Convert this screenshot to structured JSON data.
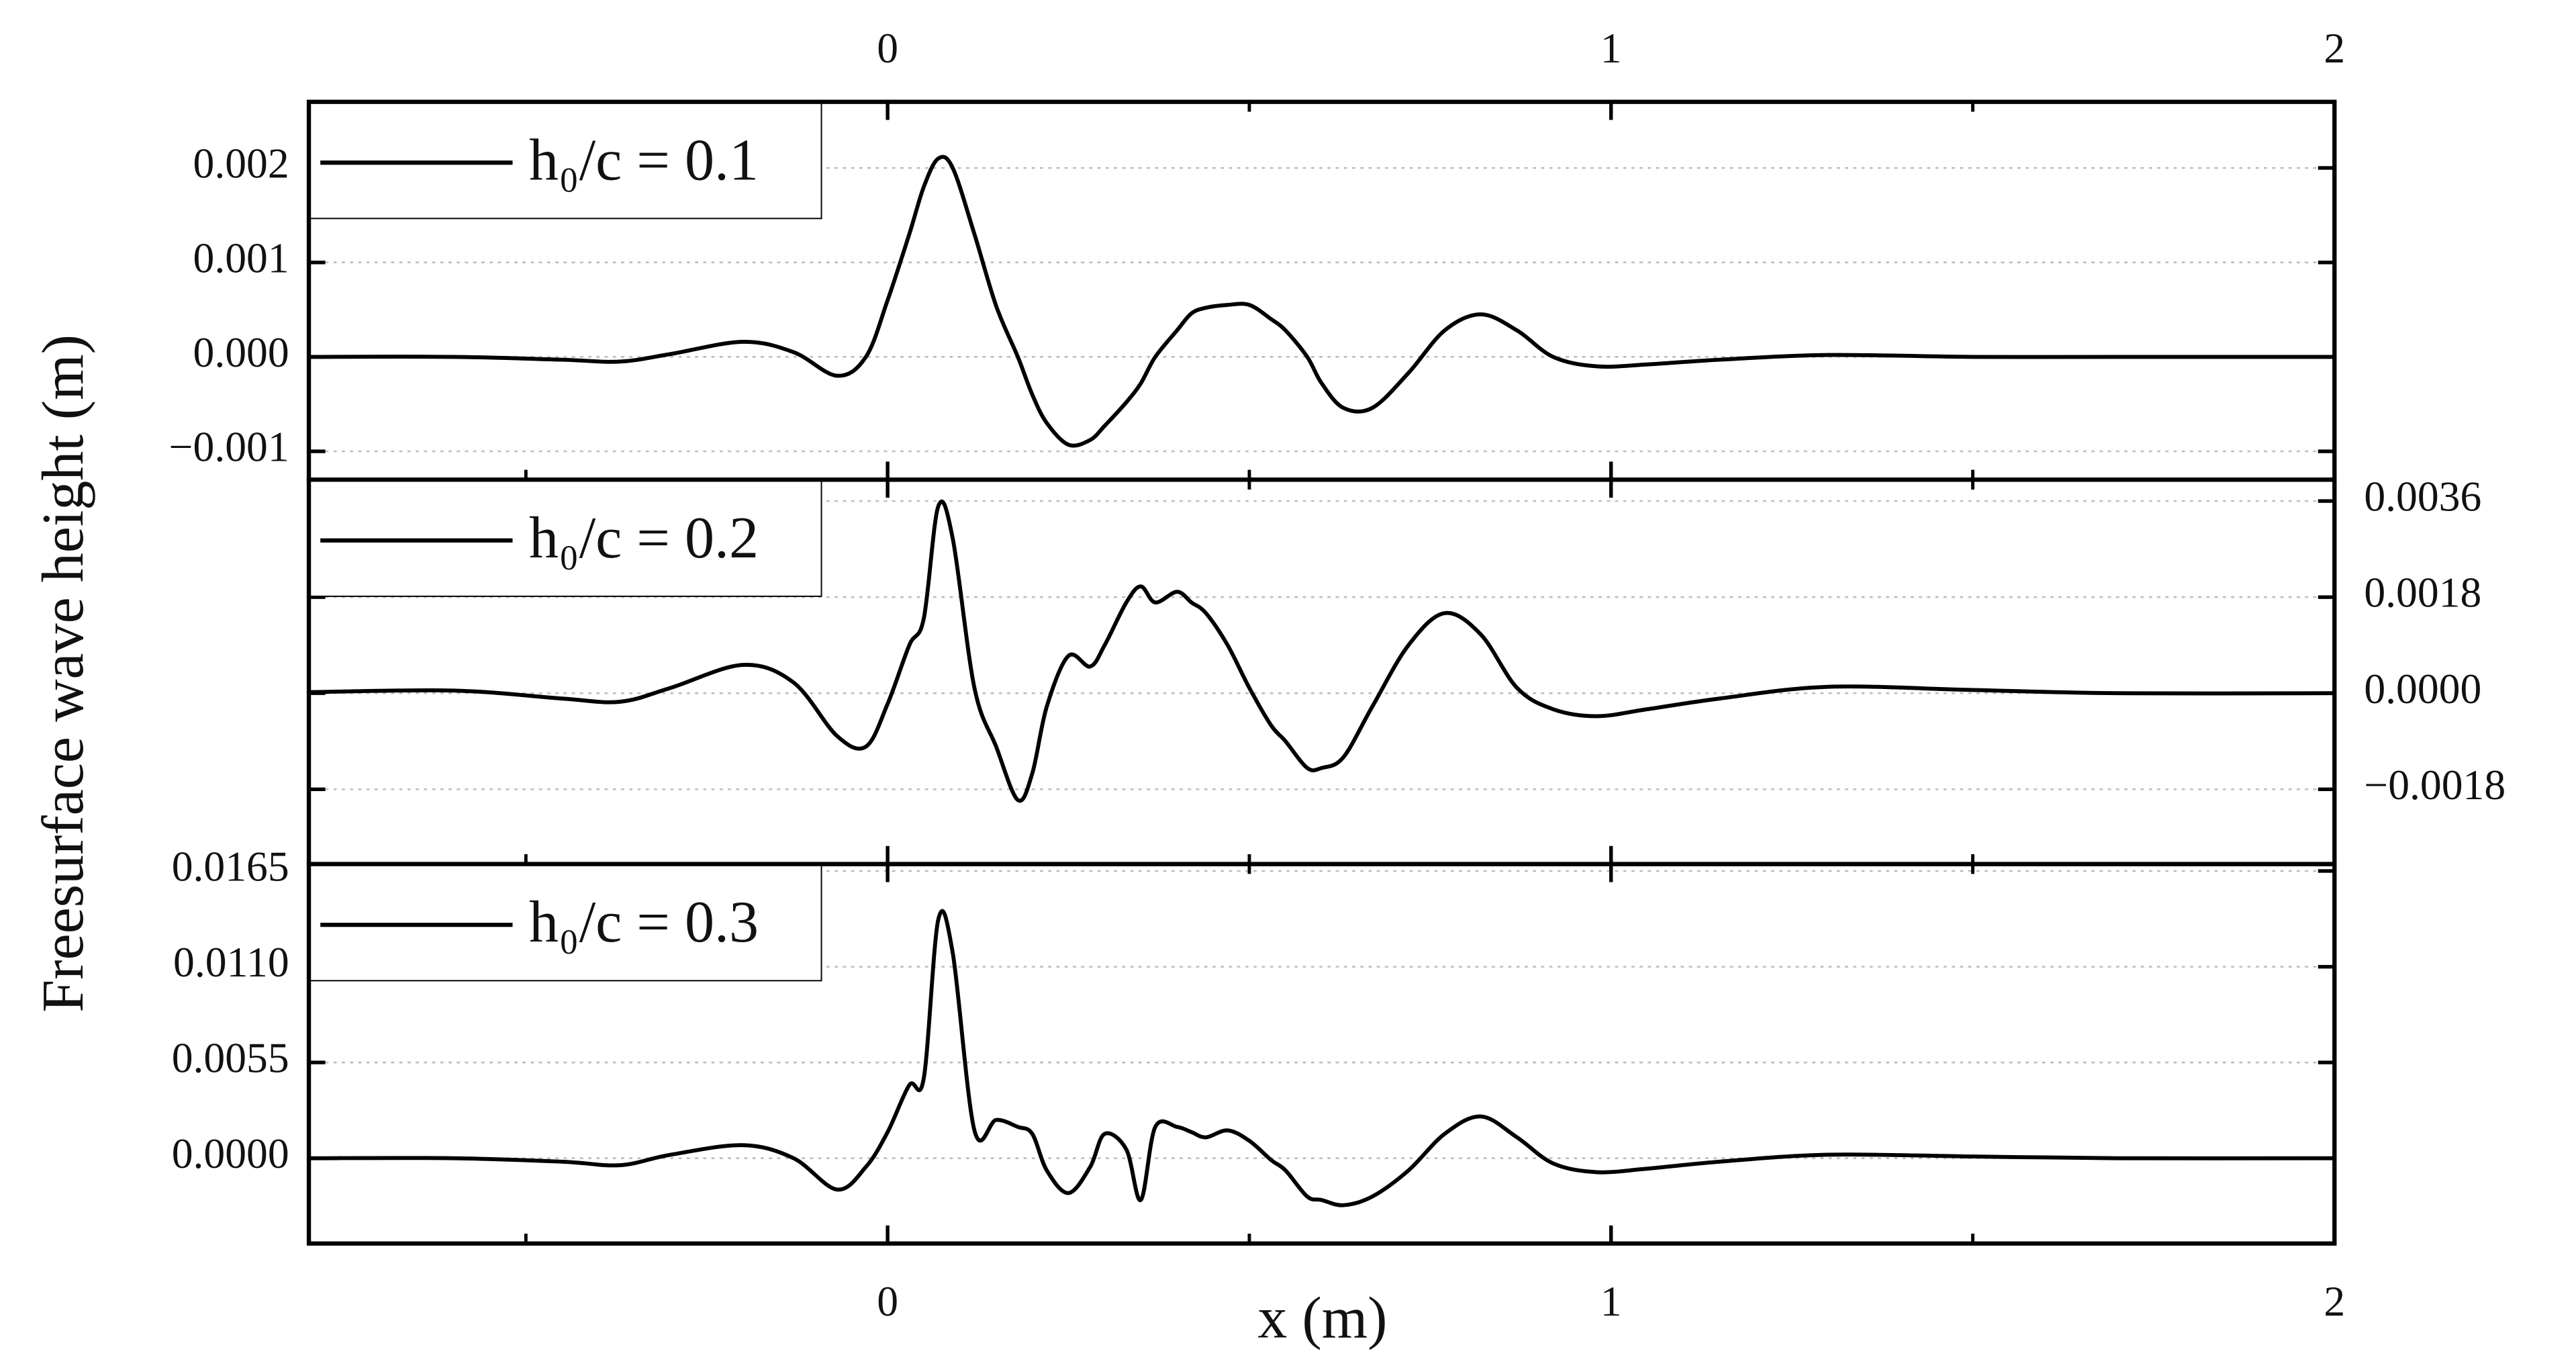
{
  "chart_data": [
    {
      "type": "line",
      "legend": "upper left",
      "grid": true,
      "yaxis_position": "left",
      "xaxis_position": "top",
      "xlim": [
        -0.8,
        2
      ],
      "xticks": [
        0,
        1,
        2
      ],
      "ylim": [
        -0.0013,
        0.0027
      ],
      "yticks": [
        {
          "value": -0.001,
          "label": "−0.001"
        },
        {
          "value": 0,
          "label": "0.000"
        },
        0.001,
        0.002
      ],
      "x": [
        -0.8,
        -0.6,
        -0.45,
        -0.37,
        -0.3,
        -0.2,
        -0.13,
        -0.07,
        -0.03,
        0,
        0.03,
        0.05,
        0.07,
        0.09,
        0.12,
        0.15,
        0.18,
        0.2,
        0.22,
        0.25,
        0.28,
        0.3,
        0.33,
        0.35,
        0.37,
        0.4,
        0.42,
        0.44,
        0.47,
        0.5,
        0.53,
        0.55,
        0.58,
        0.6,
        0.63,
        0.67,
        0.72,
        0.77,
        0.82,
        0.87,
        0.92,
        0.98,
        1.05,
        1.15,
        1.3,
        1.5,
        1.7,
        2
      ],
      "series": [
        {
          "name": "h₀/c = 0.1",
          "color": "#000000",
          "values": [
            0,
            0,
            -3e-05,
            -5e-05,
            3e-05,
            0.00016,
            5e-05,
            -0.0002,
            0,
            0.0006,
            0.0013,
            0.0018,
            0.0021,
            0.002,
            0.0013,
            0.00054,
            0,
            -0.0004,
            -0.0007,
            -0.00093,
            -0.00088,
            -0.00073,
            -0.00048,
            -0.00028,
            0,
            0.00028,
            0.00046,
            0.00052,
            0.00055,
            0.00055,
            0.0004,
            0.00028,
            0,
            -0.00028,
            -0.00054,
            -0.00054,
            -0.00017,
            0.00028,
            0.00045,
            0.00028,
            0,
            -0.0001,
            -8e-05,
            -3e-05,
            2e-05,
            0,
            0,
            0
          ]
        }
      ]
    },
    {
      "type": "line",
      "legend": "upper left",
      "grid": true,
      "yaxis_position": "right",
      "ylabel": "Freesurface wave height (m)",
      "xlim": [
        -0.8,
        2
      ],
      "ylim": [
        -0.0032,
        0.004
      ],
      "yticks": [
        {
          "value": -0.0018,
          "label": "−0.0018"
        },
        {
          "value": 0,
          "label": "0.0000"
        },
        0.0018,
        0.0036
      ],
      "x": [
        -0.8,
        -0.6,
        -0.45,
        -0.37,
        -0.3,
        -0.2,
        -0.13,
        -0.07,
        -0.03,
        0,
        0.03,
        0.05,
        0.07,
        0.09,
        0.12,
        0.15,
        0.18,
        0.2,
        0.22,
        0.25,
        0.28,
        0.3,
        0.33,
        0.35,
        0.37,
        0.4,
        0.42,
        0.44,
        0.47,
        0.5,
        0.53,
        0.55,
        0.58,
        0.6,
        0.63,
        0.67,
        0.72,
        0.77,
        0.82,
        0.87,
        0.92,
        0.98,
        1.05,
        1.15,
        1.3,
        1.5,
        1.7,
        2
      ],
      "series": [
        {
          "name": "h₀/c = 0.2",
          "color": "#000000",
          "values": [
            2e-05,
            5e-05,
            -0.0001,
            -0.00016,
            0.0001,
            0.00053,
            0.0002,
            -0.0008,
            -0.001,
            -0.0002,
            0.0009,
            0.0014,
            0.0035,
            0.0029,
            0.0001,
            -0.001,
            -0.002,
            -0.0015,
            -0.00025,
            0.0007,
            0.0005,
            0.0009,
            0.0017,
            0.002,
            0.0017,
            0.0019,
            0.0017,
            0.0015,
            0.0009,
            0.0001,
            -0.0006,
            -0.0009,
            -0.0014,
            -0.0014,
            -0.0012,
            -0.00025,
            0.0009,
            0.0015,
            0.0011,
            0.0001,
            -0.0003,
            -0.00043,
            -0.0003,
            -0.0001,
            0.00012,
            6e-05,
            0,
            0
          ]
        }
      ]
    },
    {
      "type": "line",
      "legend": "upper left",
      "grid": true,
      "yaxis_position": "left",
      "xaxis_position": "bottom",
      "xlabel": "x (m)",
      "xlim": [
        -0.8,
        2
      ],
      "xticks": [
        0,
        1,
        2
      ],
      "ylim": [
        -0.0049,
        0.0169
      ],
      "yticks": [
        {
          "value": 0,
          "label": "0.0000"
        },
        0.0055,
        {
          "value": 0.011,
          "label": "0.0110"
        },
        0.0165
      ],
      "x": [
        -0.8,
        -0.6,
        -0.45,
        -0.37,
        -0.3,
        -0.2,
        -0.13,
        -0.07,
        -0.03,
        0,
        0.03,
        0.05,
        0.07,
        0.09,
        0.12,
        0.15,
        0.18,
        0.2,
        0.22,
        0.25,
        0.28,
        0.3,
        0.33,
        0.35,
        0.37,
        0.4,
        0.42,
        0.44,
        0.47,
        0.5,
        0.53,
        0.55,
        0.58,
        0.6,
        0.63,
        0.67,
        0.72,
        0.77,
        0.82,
        0.87,
        0.92,
        0.98,
        1.05,
        1.15,
        1.3,
        1.5,
        1.7,
        2
      ],
      "series": [
        {
          "name": "h₀/c = 0.3",
          "color": "#000000",
          "values": [
            0,
            0,
            -0.0002,
            -0.0004,
            0.0002,
            0.00075,
            0,
            -0.0018,
            -0.0005,
            0.0015,
            0.0042,
            0.0046,
            0.0137,
            0.0118,
            0.0016,
            0.0022,
            0.0018,
            0.0014,
            -0.0007,
            -0.002,
            -0.0005,
            0.0014,
            0.0005,
            -0.0024,
            0.0018,
            0.0018,
            0.0015,
            0.0012,
            0.0016,
            0.001,
            -0.0001,
            -0.0007,
            -0.0022,
            -0.0024,
            -0.0027,
            -0.0022,
            -0.0007,
            0.0014,
            0.0024,
            0.0012,
            -0.0003,
            -0.0008,
            -0.0006,
            -0.0002,
            0.0002,
            0.0001,
            0,
            0
          ]
        }
      ]
    }
  ]
}
